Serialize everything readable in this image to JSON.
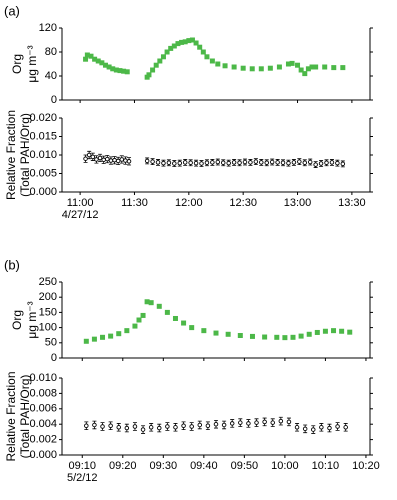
{
  "chart_data": [
    {
      "type": "scatter",
      "panel_label": "(a)",
      "ylabel": [
        "Org",
        "μg m⁻³"
      ],
      "color": "#4cb848",
      "xlim": [
        650,
        820
      ],
      "ylim": [
        0,
        120
      ],
      "yticks": [
        0,
        40,
        80,
        120
      ],
      "x": [
        663,
        664,
        666,
        668,
        670,
        672,
        674,
        676,
        678,
        680,
        682,
        684,
        686,
        697,
        698,
        700,
        702,
        704,
        706,
        708,
        710,
        712,
        714,
        716,
        718,
        720,
        722,
        724,
        726,
        728,
        730,
        733,
        736,
        740,
        745,
        750,
        755,
        760,
        765,
        770,
        775,
        777,
        780,
        782,
        784,
        786,
        788,
        790,
        795,
        800,
        805
      ],
      "values": [
        68,
        75,
        73,
        68,
        65,
        62,
        58,
        55,
        52,
        50,
        49,
        48,
        47,
        38,
        42,
        50,
        58,
        65,
        72,
        80,
        86,
        90,
        94,
        96,
        97,
        99,
        100,
        95,
        88,
        80,
        72,
        65,
        60,
        57,
        55,
        53,
        52,
        52,
        53,
        55,
        60,
        61,
        58,
        50,
        44,
        52,
        55,
        55,
        55,
        54,
        54
      ]
    },
    {
      "type": "scatter",
      "ylabel": [
        "Relative Fraction",
        "(Total PAH/Org)"
      ],
      "color": "#000000",
      "x_annotation": "4/27/12",
      "xlim": [
        650,
        820
      ],
      "xticks": [
        {
          "value": 660,
          "label": "11:00"
        },
        {
          "value": 690,
          "label": "11:30"
        },
        {
          "value": 720,
          "label": "12:00"
        },
        {
          "value": 750,
          "label": "12:30"
        },
        {
          "value": 780,
          "label": "13:00"
        },
        {
          "value": 810,
          "label": "13:30"
        }
      ],
      "ylim": [
        0,
        0.02
      ],
      "yticks": [
        {
          "value": 0,
          "label": "0.000"
        },
        {
          "value": 0.005,
          "label": "0.005"
        },
        {
          "value": 0.01,
          "label": "0.010"
        },
        {
          "value": 0.015,
          "label": "0.015"
        },
        {
          "value": 0.02,
          "label": "0.020"
        }
      ],
      "x": [
        663,
        665,
        667,
        669,
        671,
        673,
        675,
        677,
        679,
        681,
        683,
        685,
        687,
        697,
        700,
        703,
        706,
        709,
        712,
        715,
        718,
        721,
        724,
        727,
        730,
        733,
        736,
        739,
        742,
        745,
        748,
        751,
        754,
        757,
        760,
        763,
        766,
        769,
        772,
        775,
        778,
        781,
        784,
        787,
        790,
        793,
        796,
        799,
        802,
        805
      ],
      "values": [
        0.009,
        0.01,
        0.0095,
        0.0088,
        0.0092,
        0.0087,
        0.0089,
        0.0085,
        0.0086,
        0.0084,
        0.0088,
        0.0085,
        0.0083,
        0.0084,
        0.0082,
        0.008,
        0.0078,
        0.0079,
        0.0077,
        0.0078,
        0.008,
        0.0079,
        0.0078,
        0.0077,
        0.0079,
        0.008,
        0.0081,
        0.0079,
        0.0078,
        0.008,
        0.0079,
        0.0081,
        0.008,
        0.0082,
        0.008,
        0.0079,
        0.0081,
        0.008,
        0.0079,
        0.0078,
        0.008,
        0.0082,
        0.0079,
        0.0081,
        0.0074,
        0.0077,
        0.0079,
        0.008,
        0.0078,
        0.0076
      ],
      "errors": [
        0.001,
        0.001,
        0.001,
        0.001,
        0.001,
        0.001,
        0.001,
        0.001,
        0.001,
        0.001,
        0.001,
        0.001,
        0.001,
        0.0008,
        0.0008,
        0.0008,
        0.0008,
        0.0008,
        0.0008,
        0.0008,
        0.0008,
        0.0008,
        0.0008,
        0.0008,
        0.0008,
        0.0008,
        0.0008,
        0.0008,
        0.0008,
        0.0008,
        0.0008,
        0.0008,
        0.0008,
        0.0008,
        0.0008,
        0.0008,
        0.0008,
        0.0008,
        0.0008,
        0.0008,
        0.0008,
        0.0008,
        0.0008,
        0.0008,
        0.0008,
        0.0008,
        0.0008,
        0.0008,
        0.0008,
        0.0008
      ]
    },
    {
      "type": "scatter",
      "panel_label": "(b)",
      "ylabel": [
        "Org",
        "μg m⁻³"
      ],
      "color": "#4cb848",
      "xlim": [
        545,
        621
      ],
      "ylim": [
        0,
        250
      ],
      "yticks": [
        0,
        50,
        100,
        150,
        200,
        250
      ],
      "x": [
        551,
        553,
        555,
        557,
        559,
        561,
        563,
        564,
        565,
        566,
        567,
        569,
        571,
        573,
        575,
        577,
        580,
        583,
        586,
        589,
        592,
        595,
        598,
        600,
        602,
        604,
        606,
        608,
        610,
        612,
        614,
        616
      ],
      "values": [
        55,
        62,
        68,
        72,
        80,
        90,
        105,
        125,
        140,
        185,
        182,
        170,
        150,
        130,
        115,
        100,
        90,
        82,
        78,
        74,
        71,
        69,
        68,
        67,
        68,
        72,
        78,
        84,
        88,
        90,
        88,
        85
      ]
    },
    {
      "type": "scatter",
      "ylabel": [
        "Relative Fraction",
        "(Total PAH/Org)"
      ],
      "color": "#000000",
      "x_annotation": "5/2/12",
      "xlim": [
        545,
        621
      ],
      "xticks": [
        {
          "value": 550,
          "label": "09:10"
        },
        {
          "value": 560,
          "label": "09:20"
        },
        {
          "value": 570,
          "label": "09:30"
        },
        {
          "value": 580,
          "label": "09:40"
        },
        {
          "value": 590,
          "label": "09:50"
        },
        {
          "value": 600,
          "label": "10:00"
        },
        {
          "value": 610,
          "label": "10:10"
        },
        {
          "value": 620,
          "label": "10:20"
        }
      ],
      "ylim": [
        0,
        0.01
      ],
      "yticks": [
        {
          "value": 0,
          "label": "0.000"
        },
        {
          "value": 0.002,
          "label": "0.002"
        },
        {
          "value": 0.004,
          "label": "0.004"
        },
        {
          "value": 0.006,
          "label": "0.006"
        },
        {
          "value": 0.008,
          "label": "0.008"
        },
        {
          "value": 0.01,
          "label": "0.010"
        }
      ],
      "x": [
        551,
        553,
        555,
        557,
        559,
        561,
        563,
        565,
        567,
        569,
        571,
        573,
        575,
        577,
        579,
        581,
        583,
        585,
        587,
        589,
        591,
        593,
        595,
        597,
        599,
        601,
        603,
        605,
        607,
        609,
        611,
        613,
        615
      ],
      "values": [
        0.0038,
        0.0039,
        0.0037,
        0.0038,
        0.0036,
        0.0035,
        0.0037,
        0.0033,
        0.0036,
        0.0035,
        0.0037,
        0.0036,
        0.0038,
        0.0037,
        0.0039,
        0.0038,
        0.004,
        0.0039,
        0.0041,
        0.0042,
        0.0041,
        0.0042,
        0.0043,
        0.0042,
        0.0044,
        0.0043,
        0.0036,
        0.0034,
        0.0033,
        0.0036,
        0.0035,
        0.0037,
        0.0036
      ],
      "errors": [
        0.0005,
        0.0005,
        0.0005,
        0.0005,
        0.0005,
        0.0005,
        0.0005,
        0.0005,
        0.0005,
        0.0005,
        0.0005,
        0.0005,
        0.0005,
        0.0005,
        0.0005,
        0.0005,
        0.0005,
        0.0005,
        0.0005,
        0.0005,
        0.0005,
        0.0005,
        0.0005,
        0.0005,
        0.0005,
        0.0005,
        0.0005,
        0.0005,
        0.0005,
        0.0005,
        0.0005,
        0.0005,
        0.0005
      ]
    }
  ]
}
